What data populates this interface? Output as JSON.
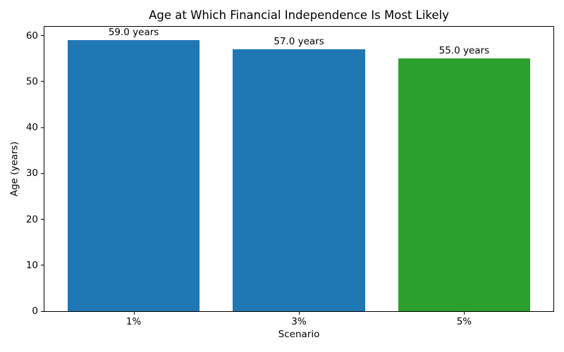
{
  "chart_data": {
    "type": "bar",
    "title": "Age at Which Financial Independence Is Most Likely",
    "xlabel": "Scenario",
    "ylabel": "Age (years)",
    "categories": [
      "1%",
      "3%",
      "5%"
    ],
    "values": [
      59.0,
      57.0,
      55.0
    ],
    "bar_labels": [
      "59.0 years",
      "57.0 years",
      "55.0 years"
    ],
    "bar_colors": [
      "#1f77b4",
      "#1f77b4",
      "#2ca02c"
    ],
    "bar_width_fraction": 0.8,
    "x_margin": 0.54,
    "ylim": [
      0,
      61.95
    ],
    "yticks": [
      0,
      10,
      20,
      30,
      40,
      50,
      60
    ],
    "grid": false,
    "legend_position": "none",
    "background_color": "#ffffff",
    "spine_color": "#000000",
    "text_color": "#000000"
  }
}
